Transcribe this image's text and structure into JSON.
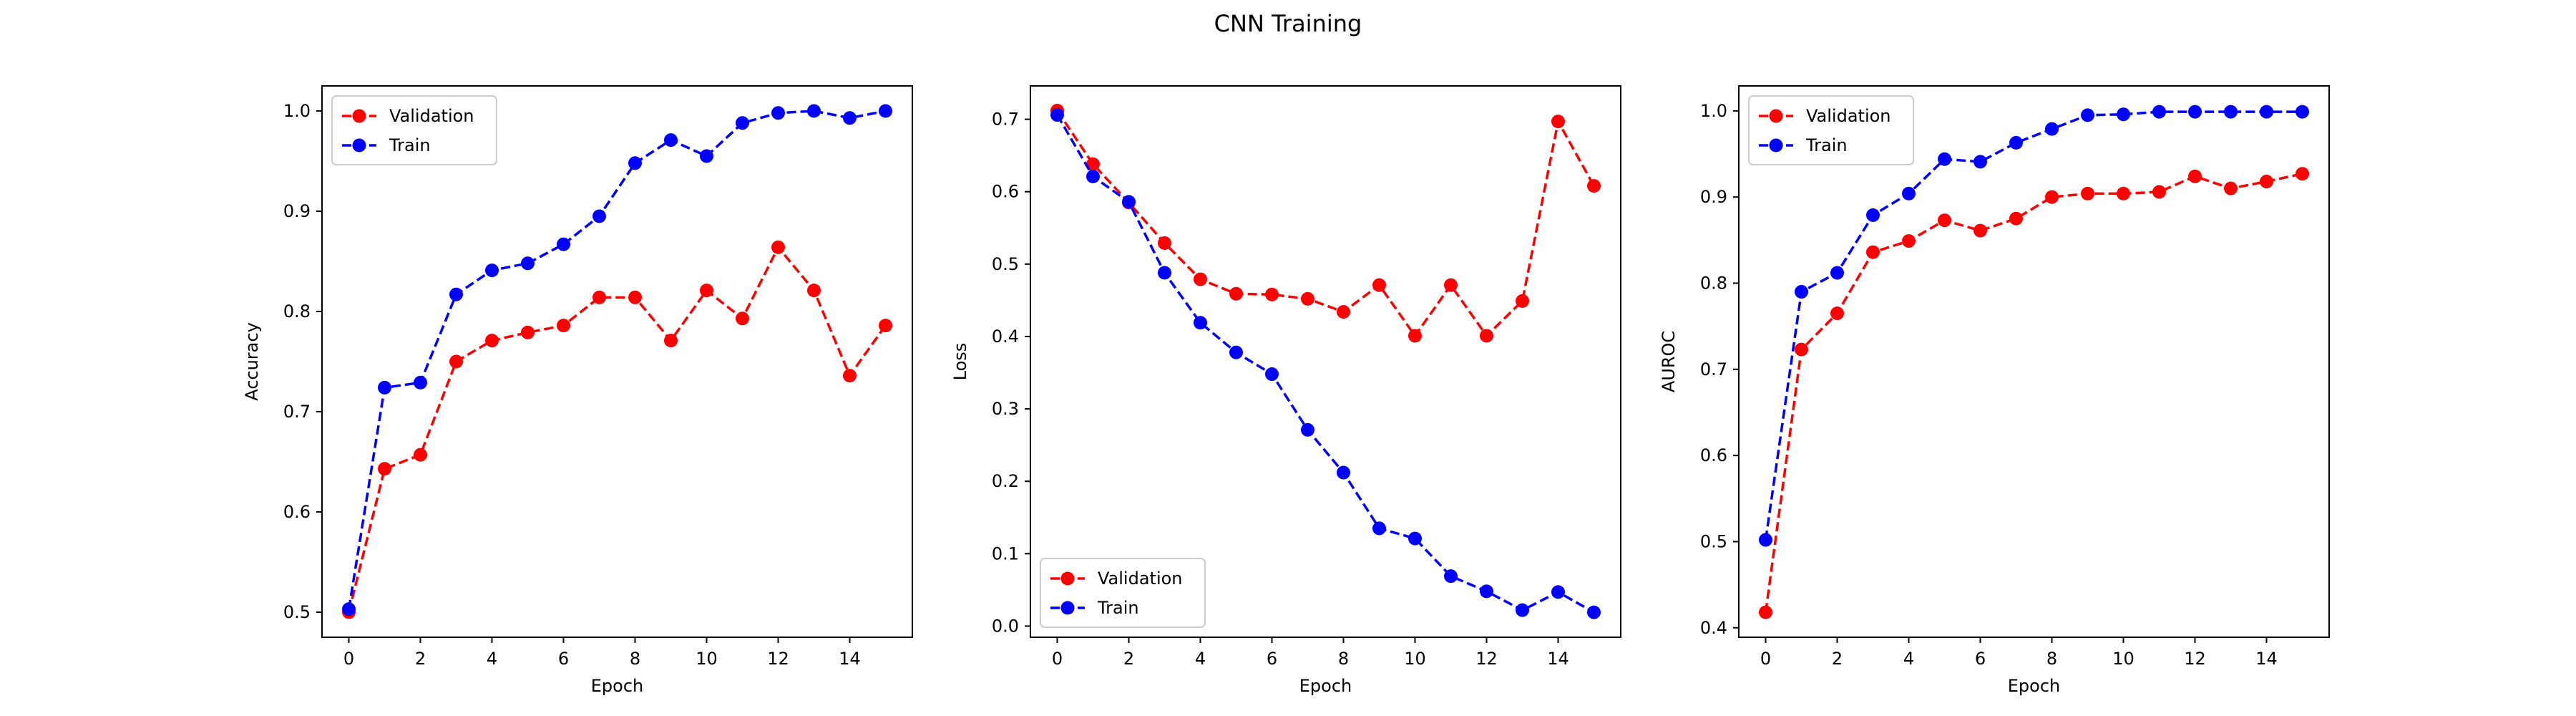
{
  "title": "CNN Training",
  "chart_data": [
    {
      "type": "line",
      "xlabel": "Epoch",
      "ylabel": "Accuracy",
      "xlim": [
        -0.75,
        15.75
      ],
      "ylim": [
        0.475,
        1.025
      ],
      "xticks": [
        0,
        2,
        4,
        6,
        8,
        10,
        12,
        14
      ],
      "xtick_labels": [
        "0",
        "2",
        "4",
        "6",
        "8",
        "10",
        "12",
        "14"
      ],
      "yticks": [
        0.5,
        0.6,
        0.7,
        0.8,
        0.9,
        1.0
      ],
      "ytick_labels": [
        "0.5",
        "0.6",
        "0.7",
        "0.8",
        "0.9",
        "1.0"
      ],
      "grid": false,
      "legend_position": "top-left",
      "x": [
        0,
        1,
        2,
        3,
        4,
        5,
        6,
        7,
        8,
        9,
        10,
        11,
        12,
        13,
        14,
        15
      ],
      "series": [
        {
          "name": "Validation",
          "color": "#ff0000",
          "linestyle": "dashed",
          "marker": "circle",
          "values": [
            0.5,
            0.643,
            0.657,
            0.75,
            0.771,
            0.779,
            0.786,
            0.814,
            0.814,
            0.771,
            0.821,
            0.793,
            0.864,
            0.821,
            0.736,
            0.786
          ]
        },
        {
          "name": "Train",
          "color": "#0000ff",
          "linestyle": "dashed",
          "marker": "circle",
          "values": [
            0.503,
            0.724,
            0.729,
            0.817,
            0.841,
            0.848,
            0.867,
            0.895,
            0.948,
            0.971,
            0.955,
            0.988,
            0.998,
            1.0,
            0.993,
            1.0
          ]
        }
      ]
    },
    {
      "type": "line",
      "xlabel": "Epoch",
      "ylabel": "Loss",
      "xlim": [
        -0.75,
        15.75
      ],
      "ylim": [
        -0.0154,
        0.7461
      ],
      "xticks": [
        0,
        2,
        4,
        6,
        8,
        10,
        12,
        14
      ],
      "xtick_labels": [
        "0",
        "2",
        "4",
        "6",
        "8",
        "10",
        "12",
        "14"
      ],
      "yticks": [
        0.0,
        0.1,
        0.2,
        0.3,
        0.4,
        0.5,
        0.6,
        0.7
      ],
      "ytick_labels": [
        "0.0",
        "0.1",
        "0.2",
        "0.3",
        "0.4",
        "0.5",
        "0.6",
        "0.7"
      ],
      "grid": false,
      "legend_position": "bottom-left",
      "x": [
        0,
        1,
        2,
        3,
        4,
        5,
        6,
        7,
        8,
        9,
        10,
        11,
        12,
        13,
        14,
        15
      ],
      "series": [
        {
          "name": "Validation",
          "color": "#ff0000",
          "linestyle": "dashed",
          "marker": "circle",
          "values": [
            0.712,
            0.638,
            0.585,
            0.529,
            0.479,
            0.459,
            0.458,
            0.452,
            0.434,
            0.471,
            0.401,
            0.471,
            0.401,
            0.449,
            0.697,
            0.608
          ]
        },
        {
          "name": "Train",
          "color": "#0000ff",
          "linestyle": "dashed",
          "marker": "circle",
          "values": [
            0.706,
            0.621,
            0.586,
            0.488,
            0.419,
            0.378,
            0.348,
            0.271,
            0.212,
            0.135,
            0.121,
            0.069,
            0.048,
            0.022,
            0.047,
            0.019
          ]
        }
      ]
    },
    {
      "type": "line",
      "xlabel": "Epoch",
      "ylabel": "AUROC",
      "xlim": [
        -0.75,
        15.75
      ],
      "ylim": [
        0.389,
        1.029
      ],
      "xticks": [
        0,
        2,
        4,
        6,
        8,
        10,
        12,
        14
      ],
      "xtick_labels": [
        "0",
        "2",
        "4",
        "6",
        "8",
        "10",
        "12",
        "14"
      ],
      "yticks": [
        0.4,
        0.5,
        0.6,
        0.7,
        0.8,
        0.9,
        1.0
      ],
      "ytick_labels": [
        "0.4",
        "0.5",
        "0.6",
        "0.7",
        "0.8",
        "0.9",
        "1.0"
      ],
      "grid": false,
      "legend_position": "top-left",
      "x": [
        0,
        1,
        2,
        3,
        4,
        5,
        6,
        7,
        8,
        9,
        10,
        11,
        12,
        13,
        14,
        15
      ],
      "series": [
        {
          "name": "Validation",
          "color": "#ff0000",
          "linestyle": "dashed",
          "marker": "circle",
          "values": [
            0.418,
            0.723,
            0.765,
            0.836,
            0.849,
            0.873,
            0.861,
            0.875,
            0.9,
            0.904,
            0.904,
            0.906,
            0.924,
            0.91,
            0.918,
            0.927
          ]
        },
        {
          "name": "Train",
          "color": "#0000ff",
          "linestyle": "dashed",
          "marker": "circle",
          "values": [
            0.502,
            0.79,
            0.812,
            0.879,
            0.904,
            0.944,
            0.941,
            0.963,
            0.979,
            0.995,
            0.996,
            0.999,
            0.999,
            0.999,
            0.999,
            0.999
          ]
        }
      ]
    }
  ]
}
